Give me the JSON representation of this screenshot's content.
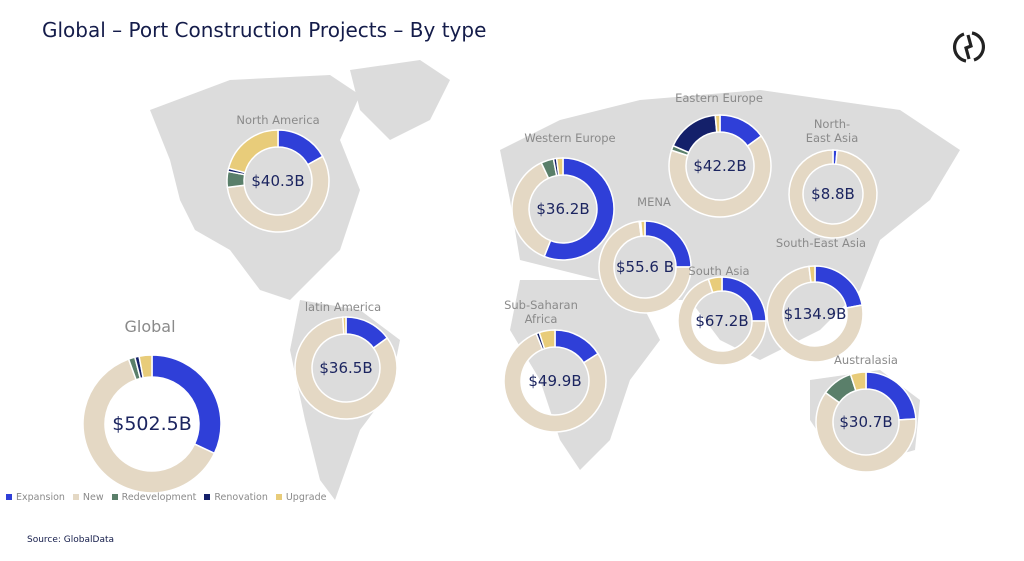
{
  "title": "Global – Port Construction Projects – By type",
  "source": "Source: GlobalData",
  "chart_data": {
    "type": "donut",
    "categories": [
      "Expansion",
      "New",
      "Redevelopment",
      "Renovation",
      "Upgrade"
    ],
    "colors": {
      "Expansion": "#2f3fd8",
      "New": "#e4d8c4",
      "Redevelopment": "#5a7f6a",
      "Renovation": "#14206a",
      "Upgrade": "#e8cc7a"
    },
    "legend_placement": "bottom-left",
    "unit": "percent share (estimated)",
    "regions": [
      {
        "name": "Global",
        "total": "$502.5B",
        "values": [
          32,
          62.5,
          1.5,
          1,
          3
        ]
      },
      {
        "name": "North America",
        "total": "$40.3B",
        "values": [
          17,
          56,
          5,
          1,
          21
        ]
      },
      {
        "name": "latin America",
        "total": "$36.5B",
        "values": [
          15,
          84,
          0,
          0,
          1
        ]
      },
      {
        "name": "Western Europe",
        "total": "$36.2B",
        "values": [
          56,
          37,
          4,
          1,
          2
        ]
      },
      {
        "name": "Eastern Europe",
        "total": "$42.2B",
        "values": [
          15,
          65,
          1.5,
          17,
          1.5
        ]
      },
      {
        "name": "North-East Asia",
        "total": "$8.8B",
        "values": [
          1.5,
          98.5,
          0,
          0,
          0
        ]
      },
      {
        "name": "MENA",
        "total": "$55.6 B",
        "values": [
          25,
          73,
          0,
          0.5,
          1.5
        ]
      },
      {
        "name": "South Asia",
        "total": "$67.2B",
        "values": [
          25,
          70,
          0,
          0,
          5
        ]
      },
      {
        "name": "South-East Asia",
        "total": "$134.9B",
        "values": [
          22,
          76,
          0,
          0,
          2
        ]
      },
      {
        "name": "Sub-Saharan Africa",
        "total": "$49.9B",
        "values": [
          16,
          78,
          0,
          1,
          5
        ]
      },
      {
        "name": "Australasia",
        "total": "$30.7B",
        "values": [
          24,
          61,
          10,
          0,
          5
        ]
      }
    ]
  }
}
